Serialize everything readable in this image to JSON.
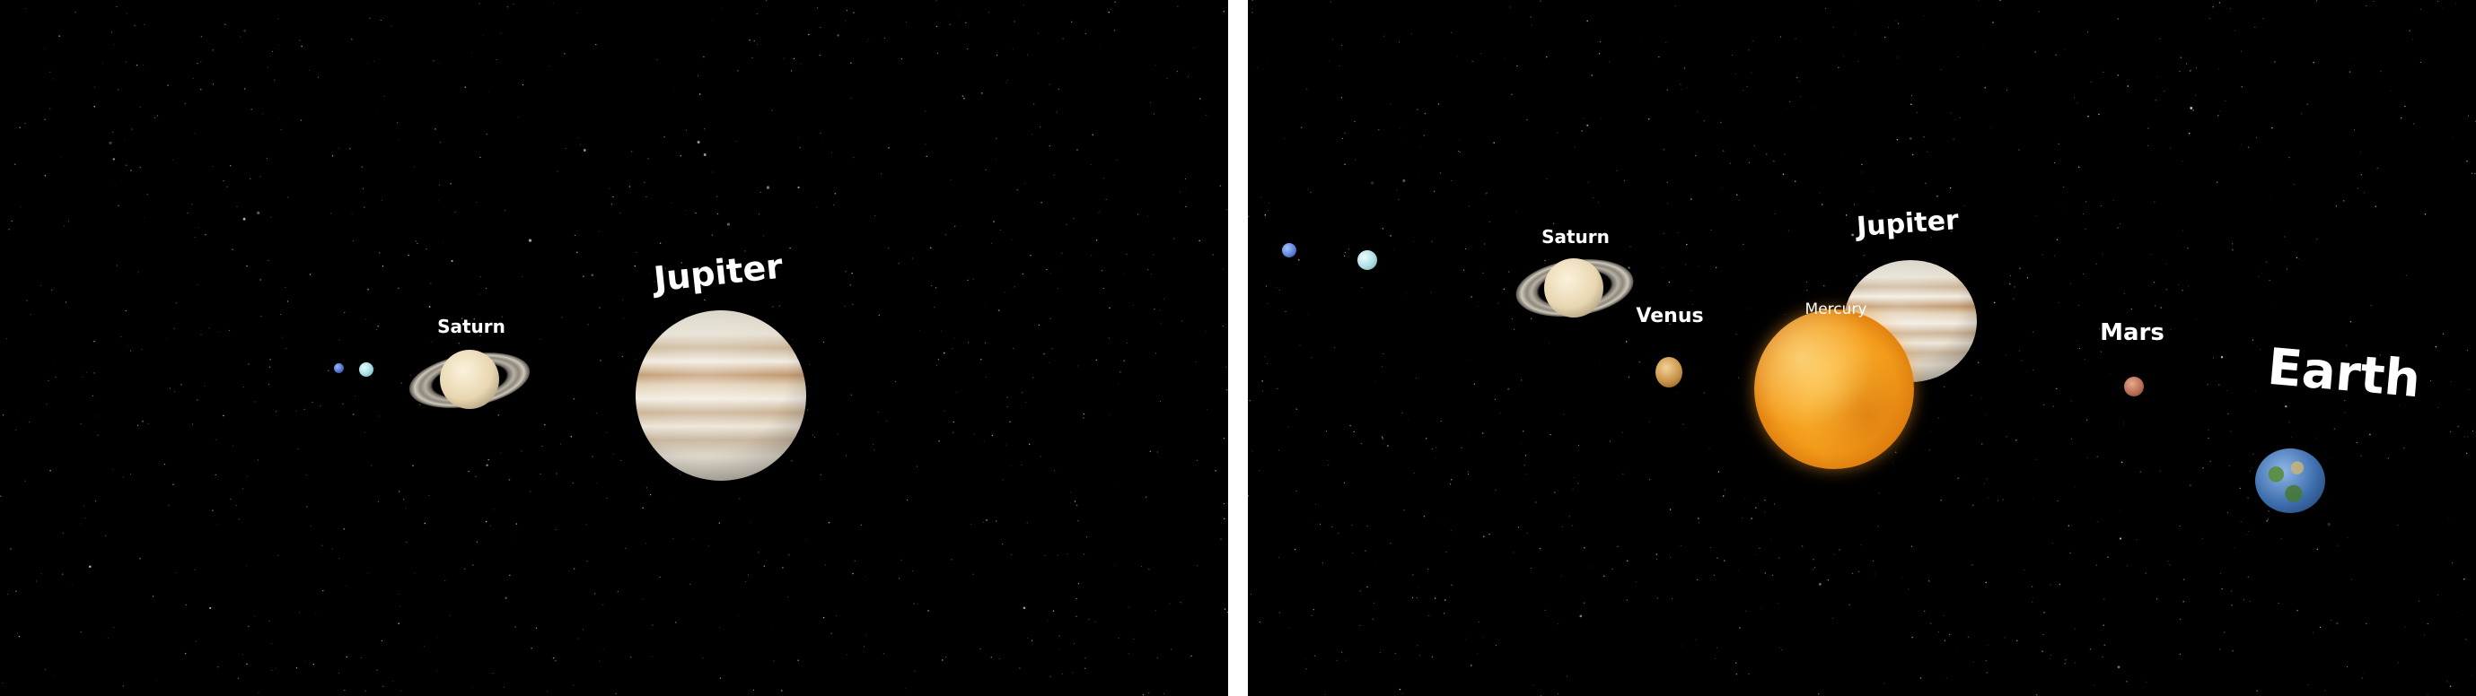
{
  "left_view": {
    "labels": {
      "neptune": "",
      "uranus": "",
      "saturn": "Saturn",
      "jupiter": "Jupiter"
    }
  },
  "right_view": {
    "labels": {
      "neptune": "",
      "uranus": "",
      "saturn": "Saturn",
      "venus": "Venus",
      "jupiter": "Jupiter",
      "mercury": "Mercury",
      "mars": "Mars",
      "earth": "Earth"
    }
  },
  "colors": {
    "space_background": "#000000",
    "divider": "#ffffff",
    "label_text": "#ffffff",
    "sun": "#f39b1a",
    "jupiter": "#d9cbb5",
    "saturn": "#e8d6b0",
    "venus": "#c99448",
    "mars": "#b46a52",
    "earth": "#3e6fae",
    "uranus": "#a6dde3",
    "neptune": "#4b6fc8"
  }
}
